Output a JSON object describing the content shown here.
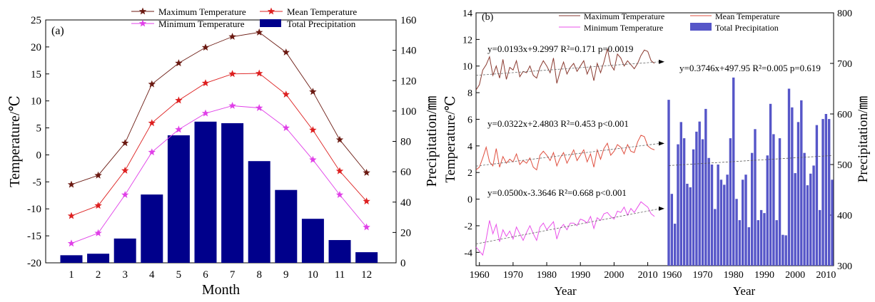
{
  "chart_data": [
    {
      "type": "bar+line",
      "panel_label": "(a)",
      "xlabel": "Month",
      "ylabel_left": "Temperature/℃",
      "ylabel_right": "Precipitation/㎜",
      "categories": [
        1,
        2,
        3,
        4,
        5,
        6,
        7,
        8,
        9,
        10,
        11,
        12
      ],
      "ylim_left": [
        -20,
        25
      ],
      "ylim_right": [
        0,
        160
      ],
      "yticks_left": [
        -20,
        -15,
        -10,
        -5,
        0,
        5,
        10,
        15,
        20,
        25
      ],
      "yticks_right": [
        0,
        20,
        40,
        60,
        80,
        100,
        120,
        140,
        160
      ],
      "legend": [
        {
          "name": "Maximum Temperature",
          "color": "#6b1a12",
          "marker": "star"
        },
        {
          "name": "Mean Temperature",
          "color": "#dd2020",
          "marker": "star"
        },
        {
          "name": "Minimum Temperature",
          "color": "#e040e8",
          "marker": "star"
        },
        {
          "name": "Total Precipitation",
          "color": "#00008b",
          "marker": "bar"
        }
      ],
      "series": [
        {
          "name": "Maximum Temperature",
          "color": "#6b1a12",
          "values": [
            -5.5,
            -3.8,
            2.2,
            13.1,
            17.0,
            19.9,
            21.9,
            22.7,
            19.0,
            11.7,
            2.8,
            -3.3
          ]
        },
        {
          "name": "Mean Temperature",
          "color": "#dd2020",
          "values": [
            -11.3,
            -9.4,
            -2.9,
            5.9,
            10.1,
            13.3,
            15.0,
            15.1,
            11.2,
            4.6,
            -3.0,
            -8.6
          ]
        },
        {
          "name": "Minimum Temperature",
          "color": "#e040e8",
          "values": [
            -16.4,
            -14.5,
            -7.4,
            0.5,
            4.7,
            7.7,
            9.1,
            8.7,
            5.0,
            -0.9,
            -7.4,
            -13.4
          ]
        }
      ],
      "bars": {
        "name": "Total Precipitation",
        "color": "#00008b",
        "values": [
          5,
          6,
          16,
          45,
          84,
          93,
          92,
          67,
          48,
          29,
          15,
          7
        ]
      }
    },
    {
      "type": "line+bar",
      "panel_label": "(b)",
      "xlabel_left": "Year",
      "xlabel_right": "Year",
      "ylabel_left": "Temperature/℃",
      "ylabel_right": "Precipitation/㎜",
      "ylim_left": [
        -5,
        14
      ],
      "ylim_right": [
        300,
        800
      ],
      "xlim": [
        1959,
        2012
      ],
      "xticks": [
        1960,
        1970,
        1980,
        1990,
        2000,
        2010
      ],
      "yticks_left": [
        -4,
        -2,
        0,
        2,
        4,
        6,
        8,
        10,
        12,
        14
      ],
      "yticks_right": [
        300,
        400,
        500,
        600,
        700,
        800
      ],
      "legend": [
        {
          "name": "Maximum Temperature",
          "color": "#8a3a30",
          "marker": "line"
        },
        {
          "name": "Mean Temperature",
          "color": "#e05040",
          "marker": "line"
        },
        {
          "name": "Minimum Temperature",
          "color": "#ea50ea",
          "marker": "line"
        },
        {
          "name": "Total Precipitation",
          "color": "#5656c8",
          "marker": "bar"
        }
      ],
      "years_start": 1959,
      "series": [
        {
          "name": "Maximum Temperature",
          "color": "#8a3a30",
          "values": [
            8.2,
            8.6,
            9.7,
            10.1,
            10.7,
            9.3,
            10.0,
            9.1,
            10.5,
            9.0,
            9.9,
            9.7,
            10.4,
            9.2,
            9.6,
            9.5,
            10.0,
            9.3,
            9.1,
            9.9,
            10.4,
            10.0,
            9.5,
            10.6,
            8.7,
            9.6,
            10.3,
            9.4,
            9.9,
            10.2,
            9.6,
            10.0,
            10.4,
            9.4,
            10.0,
            8.9,
            10.2,
            9.5,
            10.3,
            11.3,
            10.1,
            9.7,
            10.9,
            10.6,
            10.0,
            10.4,
            10.1,
            9.8,
            10.2,
            10.8,
            11.2,
            11.1,
            10.4,
            10.2
          ],
          "trend": {
            "slope": 0.0193,
            "intercept": 9.2997
          }
        },
        {
          "name": "Mean Temperature",
          "color": "#e05040",
          "values": [
            2.2,
            2.4,
            3.1,
            3.9,
            2.8,
            2.5,
            3.8,
            2.4,
            3.2,
            2.7,
            3.0,
            2.8,
            3.4,
            2.6,
            2.9,
            2.7,
            3.1,
            2.4,
            2.2,
            3.3,
            3.6,
            3.3,
            2.9,
            3.5,
            2.5,
            3.1,
            3.5,
            2.7,
            3.2,
            3.7,
            2.9,
            3.3,
            3.7,
            2.8,
            3.4,
            2.4,
            3.7,
            3.0,
            3.8,
            4.2,
            3.3,
            3.6,
            4.1,
            3.9,
            3.4,
            4.1,
            3.6,
            3.5,
            4.3,
            4.8,
            4.7,
            4.0,
            3.8,
            3.7
          ],
          "trend": {
            "slope": 0.0322,
            "intercept": 2.4803
          }
        },
        {
          "name": "Minimum Temperature",
          "color": "#ea50ea",
          "values": [
            -3.6,
            -3.9,
            -4.2,
            -3.0,
            -1.6,
            -2.6,
            -1.9,
            -3.2,
            -2.3,
            -2.8,
            -2.4,
            -3.0,
            -2.1,
            -2.6,
            -3.1,
            -2.5,
            -2.0,
            -2.6,
            -3.1,
            -2.1,
            -1.8,
            -2.3,
            -2.0,
            -1.7,
            -3.0,
            -2.2,
            -1.9,
            -2.3,
            -1.8,
            -1.8,
            -2.0,
            -1.5,
            -1.6,
            -1.8,
            -1.3,
            -2.2,
            -1.4,
            -1.6,
            -1.1,
            -1.0,
            -1.3,
            -1.5,
            -0.9,
            -1.0,
            -0.6,
            -1.2,
            -0.7,
            -1.0,
            -0.6,
            -0.2,
            -0.4,
            -0.6,
            -1.1,
            -1.3
          ],
          "trend": {
            "slope": 0.05,
            "intercept": -3.3646
          }
        }
      ],
      "bars": {
        "name": "Total Precipitation",
        "color": "#5656c8",
        "values": [
          628,
          442,
          383,
          540,
          584,
          552,
          462,
          455,
          530,
          565,
          585,
          550,
          610,
          513,
          500,
          412,
          500,
          470,
          460,
          480,
          552,
          672,
          432,
          390,
          470,
          480,
          376,
          523,
          570,
          390,
          410,
          404,
          518,
          620,
          560,
          390,
          552,
          361,
          360,
          650,
          613,
          483,
          584,
          627,
          523,
          459,
          482,
          498,
          578,
          410,
          590,
          600,
          590,
          470
        ]
      },
      "equations": [
        "y=0.0193x+9.2997 R²=0.171  p=0.0019",
        "y=0.0322x+2.4803 R²=0.453  p<0.001",
        "y=0.0500x-3.3646 R²=0.668  p<0.001",
        "y=0.3746x+497.95 R²=0.005  p=0.619"
      ],
      "precip_trend": {
        "slope": 0.3746,
        "intercept": 497.95
      }
    }
  ]
}
